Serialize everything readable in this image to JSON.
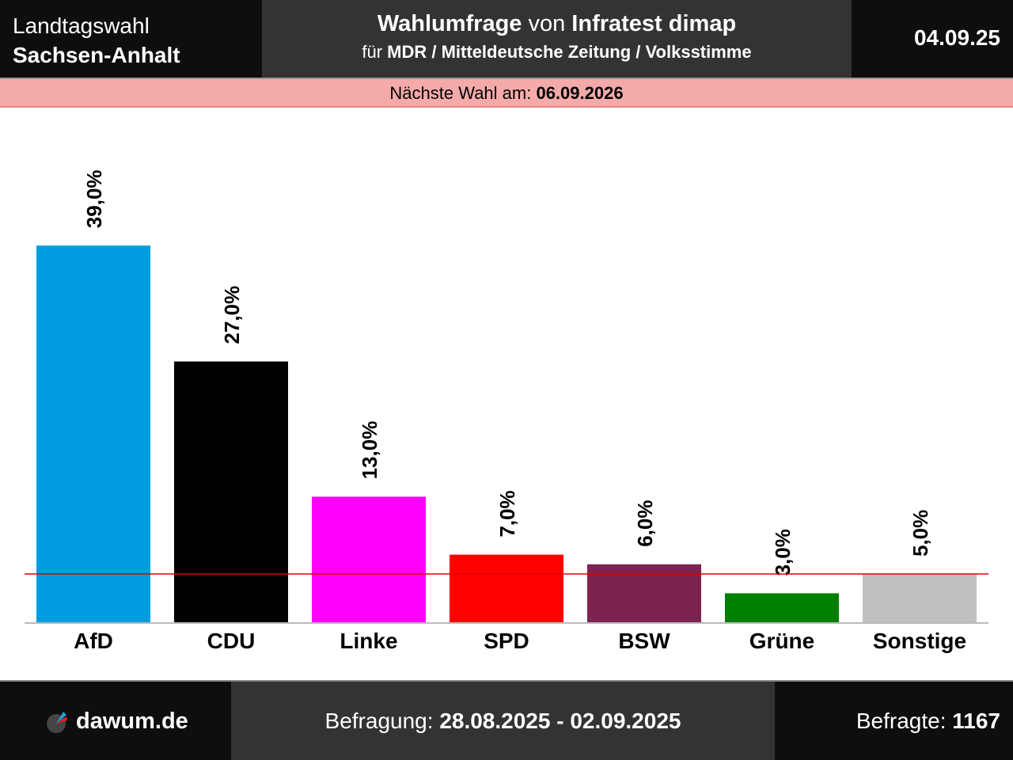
{
  "header": {
    "title_line1": "Landtagswahl",
    "title_line2": "Sachsen-Anhalt",
    "poll_prefix": "Wahlumfrage",
    "poll_von": " von ",
    "institute": "Infratest dimap",
    "for_prefix": "für ",
    "clients": "MDR / Mitteldeutsche Zeitung / Volksstimme",
    "date": "04.09.25"
  },
  "next_election": {
    "label": "Nächste Wahl am: ",
    "date": "06.09.2026"
  },
  "footer": {
    "logo": "dawum.de",
    "period_label": "Befragung: ",
    "period": "28.08.2025 - 02.09.2025",
    "respondents_label": "Befragte: ",
    "respondents": "1167"
  },
  "chart_data": {
    "type": "bar",
    "categories": [
      "AfD",
      "CDU",
      "Linke",
      "SPD",
      "BSW",
      "Grüne",
      "Sonstige"
    ],
    "values": [
      39,
      27,
      13,
      7,
      6,
      3,
      5
    ],
    "labels": [
      "39,0%",
      "27,0%",
      "13,0%",
      "7,0%",
      "6,0%",
      "3,0%",
      "5,0%"
    ],
    "colors": [
      "#009ee0",
      "#000000",
      "#ff00ff",
      "#ff0000",
      "#7b2450",
      "#008000",
      "#c0c0c0"
    ],
    "threshold": 5,
    "threshold_color": "#e00000",
    "ylim": [
      0,
      45
    ],
    "grid": false
  }
}
